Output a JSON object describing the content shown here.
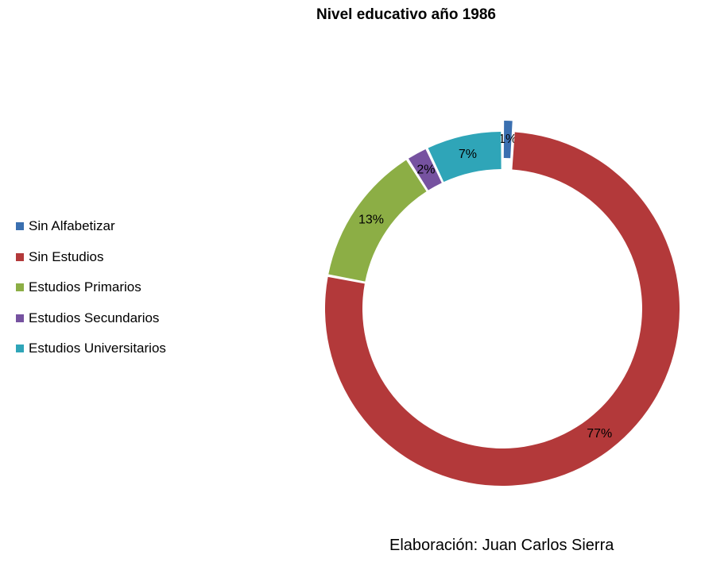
{
  "chart_data": {
    "type": "pie",
    "title": "Nivel educativo año 1986",
    "legend_position": "left",
    "series": [
      {
        "name": "Sin Alfabetizar",
        "value": 1,
        "label": "1%",
        "color": "#3a6fb0",
        "exploded": true
      },
      {
        "name": "Sin Estudios",
        "value": 77,
        "label": "77%",
        "color": "#b3393a",
        "exploded": false
      },
      {
        "name": "Estudios Primarios",
        "value": 13,
        "label": "13%",
        "color": "#8cae45",
        "exploded": false
      },
      {
        "name": "Estudios Secundarios",
        "value": 2,
        "label": "2%",
        "color": "#7652a0",
        "exploded": false
      },
      {
        "name": "Estudios Universitarios",
        "value": 7,
        "label": "7%",
        "color": "#2fa5b8",
        "exploded": false
      }
    ]
  },
  "credit": "Elaboración: Juan Carlos Sierra"
}
